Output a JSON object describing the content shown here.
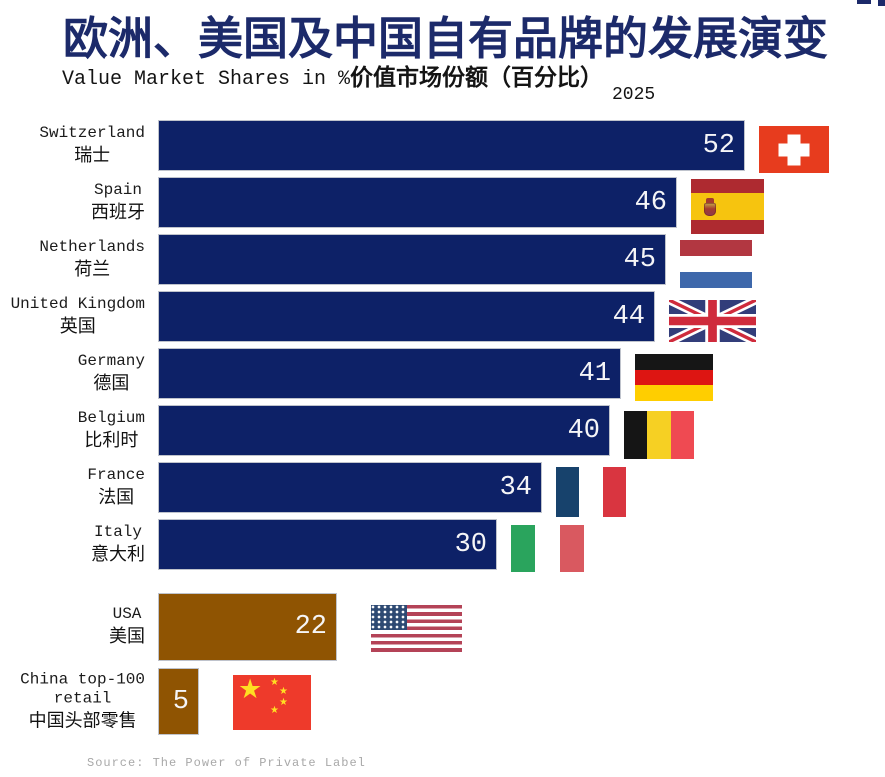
{
  "header": {
    "title": "欧洲、美国及中国自有品牌的发展演变",
    "subtitle_en": "Value Market Shares in %",
    "subtitle_zh": "价值市场份额（百分比）",
    "year": "2025"
  },
  "footer": {
    "source": "Source: The Power of Private Label"
  },
  "colors": {
    "title_navy": "#1c2a6a",
    "europe_bar": "#0d2167",
    "other_bar": "#8f5402",
    "bar_border": "#bfc3cc",
    "value_text": "#f5f5f7",
    "source_gray": "#a8a8a8",
    "swiss_red": "#e73c1e",
    "china_red": "#ee3a2b"
  },
  "chart_data": {
    "type": "bar",
    "orientation": "horizontal",
    "title": "欧洲、美国及中国自有品牌的发展演变",
    "subtitle": "Value Market Shares in %价值市场份额（百分比）",
    "year": "2025",
    "unit": "% value market share",
    "grid": false,
    "legend_position": "none",
    "xlim": [
      0,
      55
    ],
    "value_labels": "inside-end",
    "rows": [
      {
        "name_en_lines": [
          "Switzerland"
        ],
        "name_zh": "瑞士",
        "value": 52,
        "flag": "switzerland",
        "group": "europe"
      },
      {
        "name_en_lines": [
          "Spain"
        ],
        "name_zh": "西班牙",
        "value": 46,
        "flag": "spain",
        "group": "europe"
      },
      {
        "name_en_lines": [
          "Netherlands"
        ],
        "name_zh": "荷兰",
        "value": 45,
        "flag": "netherlands",
        "group": "europe"
      },
      {
        "name_en_lines": [
          "United Kingdom"
        ],
        "name_zh": "英国",
        "value": 44,
        "flag": "uk",
        "group": "europe"
      },
      {
        "name_en_lines": [
          "Germany"
        ],
        "name_zh": "德国",
        "value": 41,
        "flag": "germany",
        "group": "europe"
      },
      {
        "name_en_lines": [
          "Belgium"
        ],
        "name_zh": "比利时",
        "value": 40,
        "flag": "belgium",
        "group": "europe"
      },
      {
        "name_en_lines": [
          "France"
        ],
        "name_zh": "法国",
        "value": 34,
        "flag": "france",
        "group": "europe"
      },
      {
        "name_en_lines": [
          "Italy"
        ],
        "name_zh": "意大利",
        "value": 30,
        "flag": "italy",
        "group": "europe"
      },
      {
        "name_en_lines": [
          "USA"
        ],
        "name_zh": "美国",
        "value": 22,
        "flag": "usa",
        "group": "other"
      },
      {
        "name_en_lines": [
          "China top-100",
          "retail"
        ],
        "name_zh": "中国头部零售",
        "value": 5,
        "flag": "china",
        "group": "other"
      }
    ],
    "source": "Source: The Power of Private Label"
  }
}
